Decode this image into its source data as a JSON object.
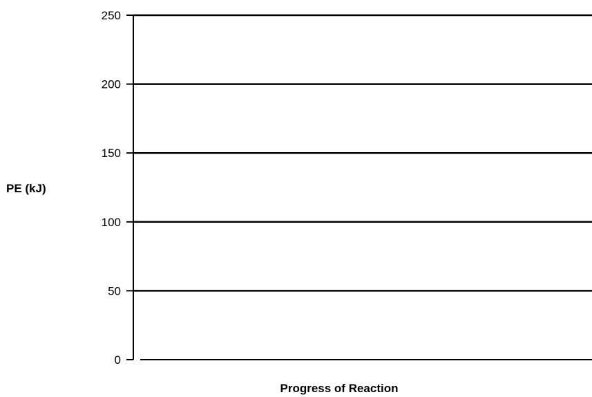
{
  "chart_data": {
    "type": "line",
    "title": "",
    "xlabel": "Progress of Reaction",
    "ylabel": "PE (kJ)",
    "ylim": [
      0,
      250
    ],
    "yticks": [
      0,
      50,
      100,
      150,
      200,
      250
    ],
    "ytick_labels": [
      "0",
      "50",
      "100",
      "150",
      "200",
      "250"
    ],
    "grid": true,
    "series": [],
    "colors": {
      "axis": "#000000",
      "grid": "#000000"
    }
  }
}
